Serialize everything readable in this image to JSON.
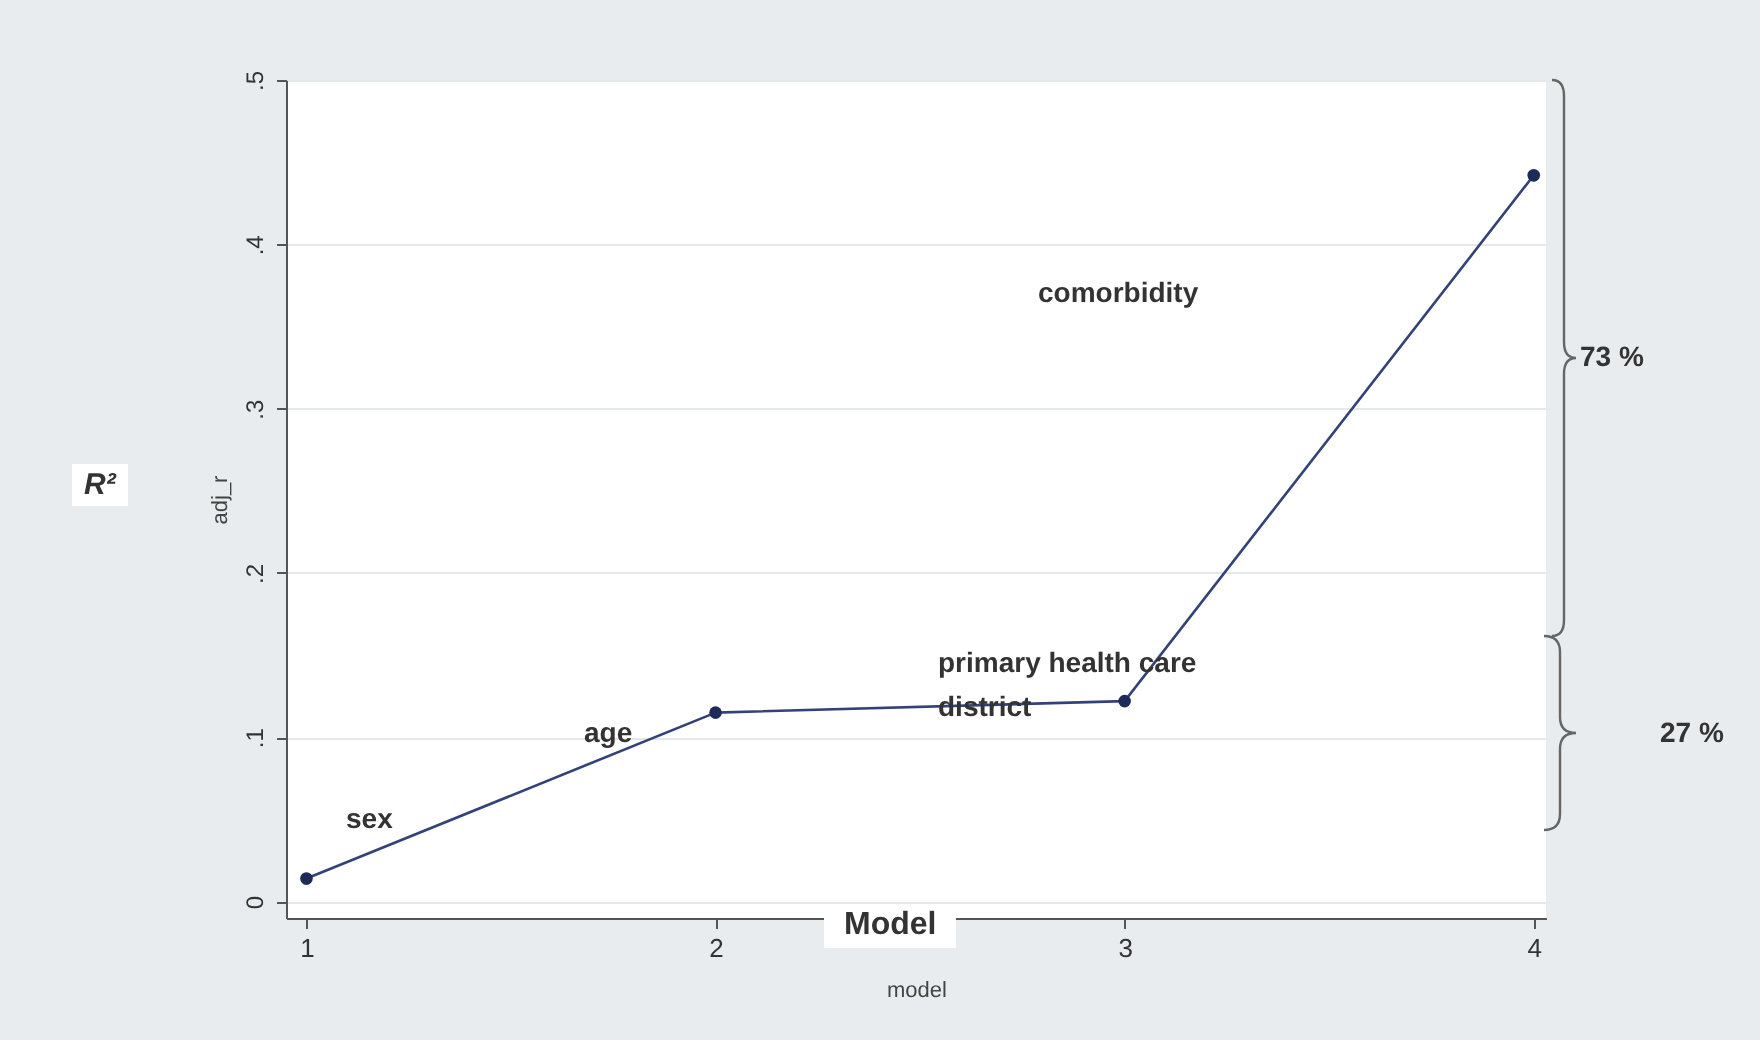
{
  "chart_data": {
    "type": "line",
    "x": [
      1,
      2,
      3,
      4
    ],
    "series": [
      {
        "color": "#34427a",
        "values": [
          0.014,
          0.115,
          0.122,
          0.442
        ]
      }
    ],
    "xlabel": "model",
    "ylabel": "adj_r",
    "xlim": [
      0.95,
      4.03
    ],
    "xticks": [
      1,
      2,
      3,
      4
    ],
    "ylim": [
      -0.01,
      0.5
    ],
    "yticks": [
      {
        "value": 0,
        "label": "0"
      },
      {
        "value": 0.1,
        "label": ".1"
      },
      {
        "value": 0.2,
        "label": ".2"
      },
      {
        "value": 0.3,
        "label": ".3"
      },
      {
        "value": 0.4,
        "label": ".4"
      },
      {
        "value": 0.5,
        "label": ".5"
      }
    ],
    "grid": "y",
    "marker": "circle",
    "line_style": "solid",
    "annotations": [
      "sex",
      "age",
      "primary health care district",
      "comorbidity",
      "R²",
      "Model",
      "73 %",
      "27 %"
    ]
  }
}
